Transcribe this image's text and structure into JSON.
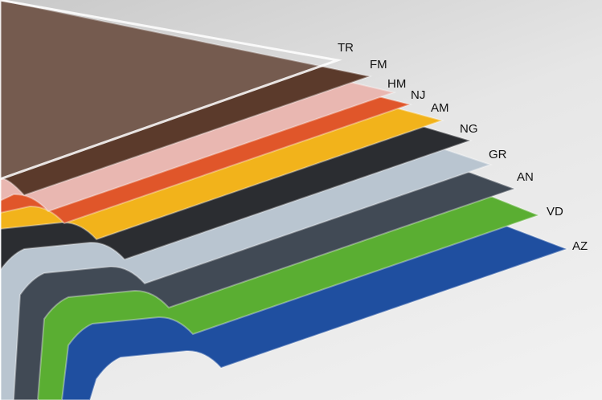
{
  "layers": [
    {
      "code": "AZ",
      "color": "#1f4fa0"
    },
    {
      "code": "VD",
      "color": "#5aae32"
    },
    {
      "code": "AN",
      "color": "#414a55"
    },
    {
      "code": "GR",
      "color": "#b9c5d0"
    },
    {
      "code": "NG",
      "color": "#2b2d31"
    },
    {
      "code": "AM",
      "color": "#f2b31b"
    },
    {
      "code": "NJ",
      "color": "#e0562a"
    },
    {
      "code": "HM",
      "color": "#e9b7b1"
    },
    {
      "code": "FM",
      "color": "#5b3a2b"
    },
    {
      "code": "TR",
      "color": "#d0d0d0"
    }
  ]
}
